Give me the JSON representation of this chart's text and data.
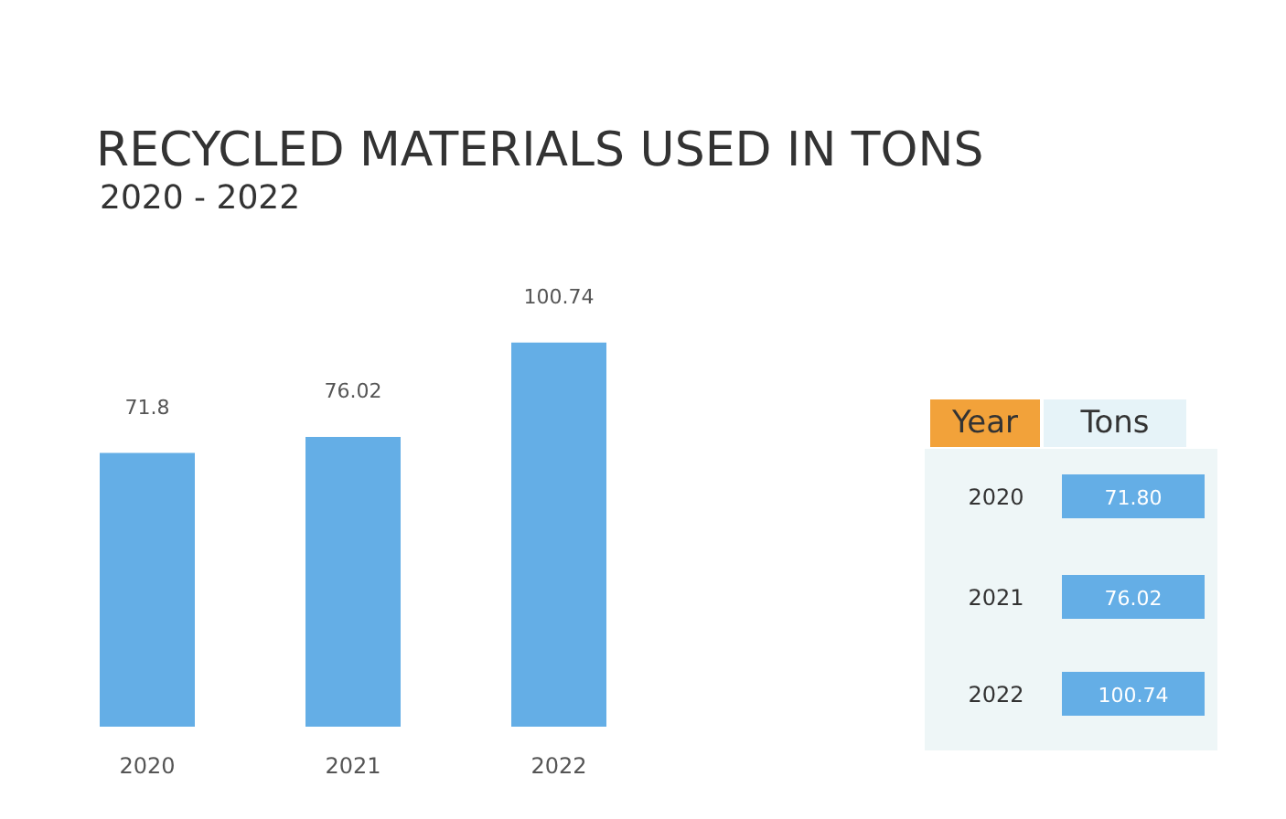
{
  "chart_data": {
    "type": "bar",
    "title": "RECYCLED MATERIALS USED IN TONS",
    "subtitle": "2020 - 2022",
    "categories": [
      "2020",
      "2021",
      "2022"
    ],
    "values": [
      71.8,
      76.02,
      100.74
    ],
    "value_labels": [
      "71.8",
      "76.02",
      "100.74"
    ],
    "color": "#64aee6",
    "annotations": [
      "Year",
      "Tons",
      "2020",
      "71.80",
      "2021",
      "76.02",
      "2022",
      "100.74"
    ]
  }
}
